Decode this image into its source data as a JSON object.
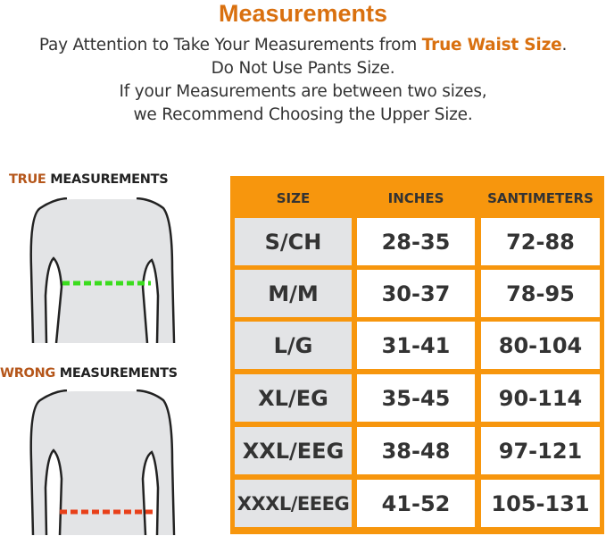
{
  "title": "Measurements",
  "intro": {
    "line1_prefix": "Pay Attention to Take Your Measurements from ",
    "line1_highlight": "True Waist Size",
    "line1_suffix": ".",
    "line2": "Do Not Use Pants Size.",
    "line3": "If your Measurements are between two sizes,",
    "line4": "we Recommend Choosing the Upper Size."
  },
  "true_label": {
    "accent": "TRUE",
    "rest": " MEASUREMENTS"
  },
  "wrong_label": {
    "accent": "WRONG",
    "rest": " MEASUREMENTS"
  },
  "colors": {
    "accent": "#d9700f",
    "table_border": "#f7960d",
    "true_line": "#3bdc1e",
    "wrong_line": "#e8401a"
  },
  "table": {
    "headers": [
      "SIZE",
      "INCHES",
      "SANTIMETERS"
    ],
    "rows": [
      [
        "S/CH",
        "28-35",
        "72-88"
      ],
      [
        "M/M",
        "30-37",
        "78-95"
      ],
      [
        "L/G",
        "31-41",
        "80-104"
      ],
      [
        "XL/EG",
        "35-45",
        "90-114"
      ],
      [
        "XXL/EEG",
        "38-48",
        "97-121"
      ],
      [
        "XXXL/EEEG",
        "41-52",
        "105-131"
      ]
    ]
  }
}
